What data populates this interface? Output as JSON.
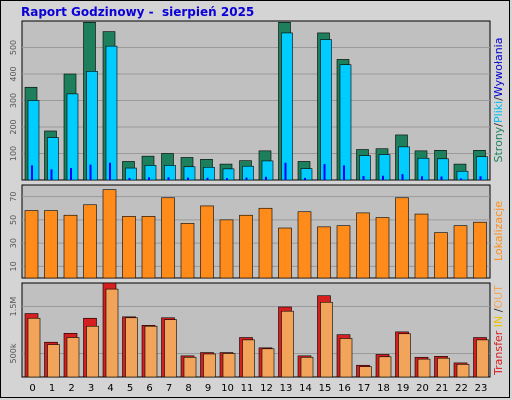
{
  "title": "Raport Godzinowy -  sierpień 2025",
  "colors": {
    "plot_bg": "#c0c0c0",
    "strony": "#1e7f5c",
    "pliki": "#00ccff",
    "wywolania": "#0000ff",
    "lokalizacje": "#ff8c1a",
    "transfer_in": "#d61f1f",
    "transfer_out": "#f2a55a",
    "title": "#0b00d6"
  },
  "legends": {
    "top": [
      {
        "text": "Strony",
        "color": "#1e7f5c"
      },
      {
        "text": "/",
        "color": "#333333"
      },
      {
        "text": "Pliki",
        "color": "#00bbee"
      },
      {
        "text": "/",
        "color": "#333333"
      },
      {
        "text": "Wywołania",
        "color": "#0000cc"
      }
    ],
    "middle": [
      {
        "text": "Lokalizacje",
        "color": "#ff8c1a"
      }
    ],
    "bottom": [
      {
        "text": "Transfer",
        "color": "#d61f1f"
      },
      {
        "text": " IN ",
        "color": "#e8c000"
      },
      {
        "text": "/",
        "color": "#333333"
      },
      {
        "text": "OUT",
        "color": "#f2a55a"
      }
    ]
  },
  "chart_data": [
    {
      "type": "bar",
      "categories": [
        "0",
        "1",
        "2",
        "3",
        "4",
        "5",
        "6",
        "7",
        "8",
        "9",
        "10",
        "11",
        "12",
        "13",
        "14",
        "15",
        "16",
        "17",
        "18",
        "19",
        "20",
        "21",
        "22",
        "23"
      ],
      "ylim": [
        0,
        600
      ],
      "yticks": [
        100,
        200,
        300,
        400,
        500
      ],
      "ytick_labels": [
        "100",
        "200",
        "300",
        "400",
        "500"
      ],
      "series": [
        {
          "name": "Strony",
          "values": [
            350,
            185,
            400,
            595,
            560,
            70,
            90,
            100,
            85,
            78,
            60,
            73,
            110,
            595,
            70,
            555,
            455,
            115,
            118,
            170,
            110,
            112,
            60,
            112
          ]
        },
        {
          "name": "Pliki",
          "values": [
            300,
            160,
            325,
            410,
            505,
            45,
            55,
            55,
            50,
            48,
            42,
            52,
            72,
            555,
            43,
            530,
            435,
            92,
            96,
            125,
            82,
            80,
            33,
            88
          ]
        },
        {
          "name": "Wywołania",
          "values": [
            55,
            40,
            45,
            58,
            65,
            8,
            10,
            10,
            9,
            8,
            7,
            9,
            12,
            65,
            8,
            60,
            55,
            15,
            16,
            22,
            14,
            13,
            6,
            14
          ]
        }
      ]
    },
    {
      "type": "bar",
      "categories": [
        "0",
        "1",
        "2",
        "3",
        "4",
        "5",
        "6",
        "7",
        "8",
        "9",
        "10",
        "11",
        "12",
        "13",
        "14",
        "15",
        "16",
        "17",
        "18",
        "19",
        "20",
        "21",
        "22",
        "23"
      ],
      "ylim": [
        0,
        80
      ],
      "yticks": [
        10,
        30,
        50,
        70
      ],
      "ytick_labels": [
        "10",
        "30",
        "50",
        "70"
      ],
      "series": [
        {
          "name": "Lokalizacje",
          "values": [
            58,
            58,
            54,
            63,
            76,
            53,
            53,
            69,
            47,
            62,
            50,
            54,
            60,
            43,
            57,
            44,
            45,
            56,
            52,
            69,
            55,
            39,
            45,
            48
          ]
        }
      ]
    },
    {
      "type": "bar",
      "categories": [
        "0",
        "1",
        "2",
        "3",
        "4",
        "5",
        "6",
        "7",
        "8",
        "9",
        "10",
        "11",
        "12",
        "13",
        "14",
        "15",
        "16",
        "17",
        "18",
        "19",
        "20",
        "21",
        "22",
        "23"
      ],
      "ylim": [
        0,
        2000000
      ],
      "yticks": [
        500000,
        1500000
      ],
      "ytick_labels": [
        "500k",
        "1.5M"
      ],
      "series": [
        {
          "name": "IN",
          "values": [
            1350000,
            740000,
            930000,
            1250000,
            2000000,
            1280000,
            1100000,
            1260000,
            450000,
            520000,
            520000,
            840000,
            620000,
            1490000,
            450000,
            1730000,
            900000,
            250000,
            480000,
            960000,
            420000,
            440000,
            300000,
            840000
          ]
        },
        {
          "name": "OUT",
          "values": [
            1250000,
            690000,
            840000,
            1080000,
            1870000,
            1260000,
            1080000,
            1220000,
            420000,
            490000,
            500000,
            790000,
            600000,
            1400000,
            420000,
            1590000,
            820000,
            220000,
            430000,
            920000,
            380000,
            400000,
            270000,
            790000
          ]
        }
      ]
    }
  ]
}
